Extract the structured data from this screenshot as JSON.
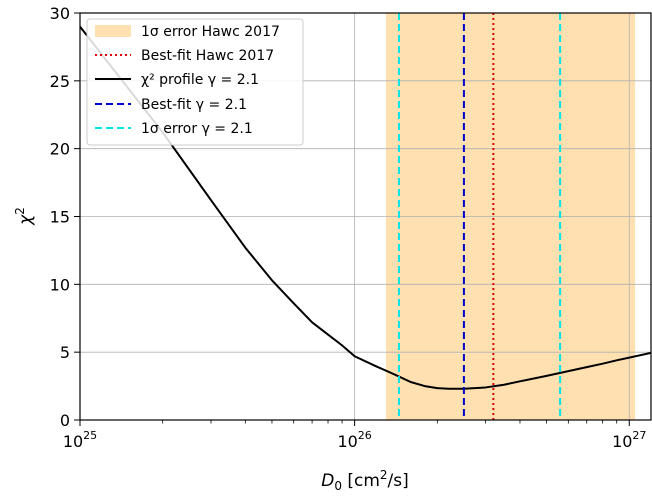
{
  "chart_data": {
    "type": "line",
    "xscale": "log",
    "xlim": [
      1e+25,
      1.2e+27
    ],
    "ylim": [
      0,
      30
    ],
    "xlabel_main": "D",
    "xlabel_sub": "0",
    "xlabel_unit_pre": " [cm",
    "xlabel_unit_sup": "2",
    "xlabel_unit_post": "/s]",
    "ylabel_main": "χ",
    "ylabel_sup": "2",
    "x_ticks": [
      {
        "value": 1e+25,
        "base": "10",
        "exp": "25"
      },
      {
        "value": 1e+26,
        "base": "10",
        "exp": "26"
      },
      {
        "value": 1e+27,
        "base": "10",
        "exp": "27"
      }
    ],
    "y_ticks": [
      0,
      5,
      10,
      15,
      20,
      25,
      30
    ],
    "grid": true,
    "legend_position": "top-left",
    "hawc_band": {
      "x_min": 1.3e+26,
      "x_max": 1.05e+27,
      "color": "#ffe0b0",
      "label": "1σ error Hawc 2017"
    },
    "hawc_bestfit": {
      "x": 3.2e+26,
      "color": "#e00000",
      "label": "Best-fit Hawc 2017"
    },
    "profile": {
      "label": "χ² profile γ = 2.1",
      "color": "#000000",
      "x": [
        1e+25,
        2e+25,
        3e+25,
        4e+25,
        5e+25,
        6e+25,
        7e+25,
        8e+25,
        9e+25,
        1e+26,
        1.2e+26,
        1.4e+26,
        1.6e+26,
        1.8e+26,
        2e+26,
        2.2e+26,
        2.5e+26,
        3e+26,
        3.5e+26,
        4e+26,
        5e+26,
        6e+26,
        7e+26,
        8e+26,
        9e+26,
        1e+27,
        1.2e+27
      ],
      "y": [
        29,
        21.2,
        16.2,
        12.7,
        10.3,
        8.6,
        7.2,
        6.3,
        5.5,
        4.7,
        3.95,
        3.35,
        2.8,
        2.5,
        2.35,
        2.3,
        2.3,
        2.4,
        2.6,
        2.85,
        3.25,
        3.6,
        3.9,
        4.15,
        4.4,
        4.6,
        4.95
      ]
    },
    "bestfit": {
      "x": 2.5e+26,
      "color": "#0000cc",
      "label": "Best-fit γ = 2.1"
    },
    "error_1sigma": {
      "x": [
        1.45e+26,
        5.6e+26
      ],
      "color": "#00e5e5",
      "label": "1σ error γ = 2.1"
    }
  }
}
